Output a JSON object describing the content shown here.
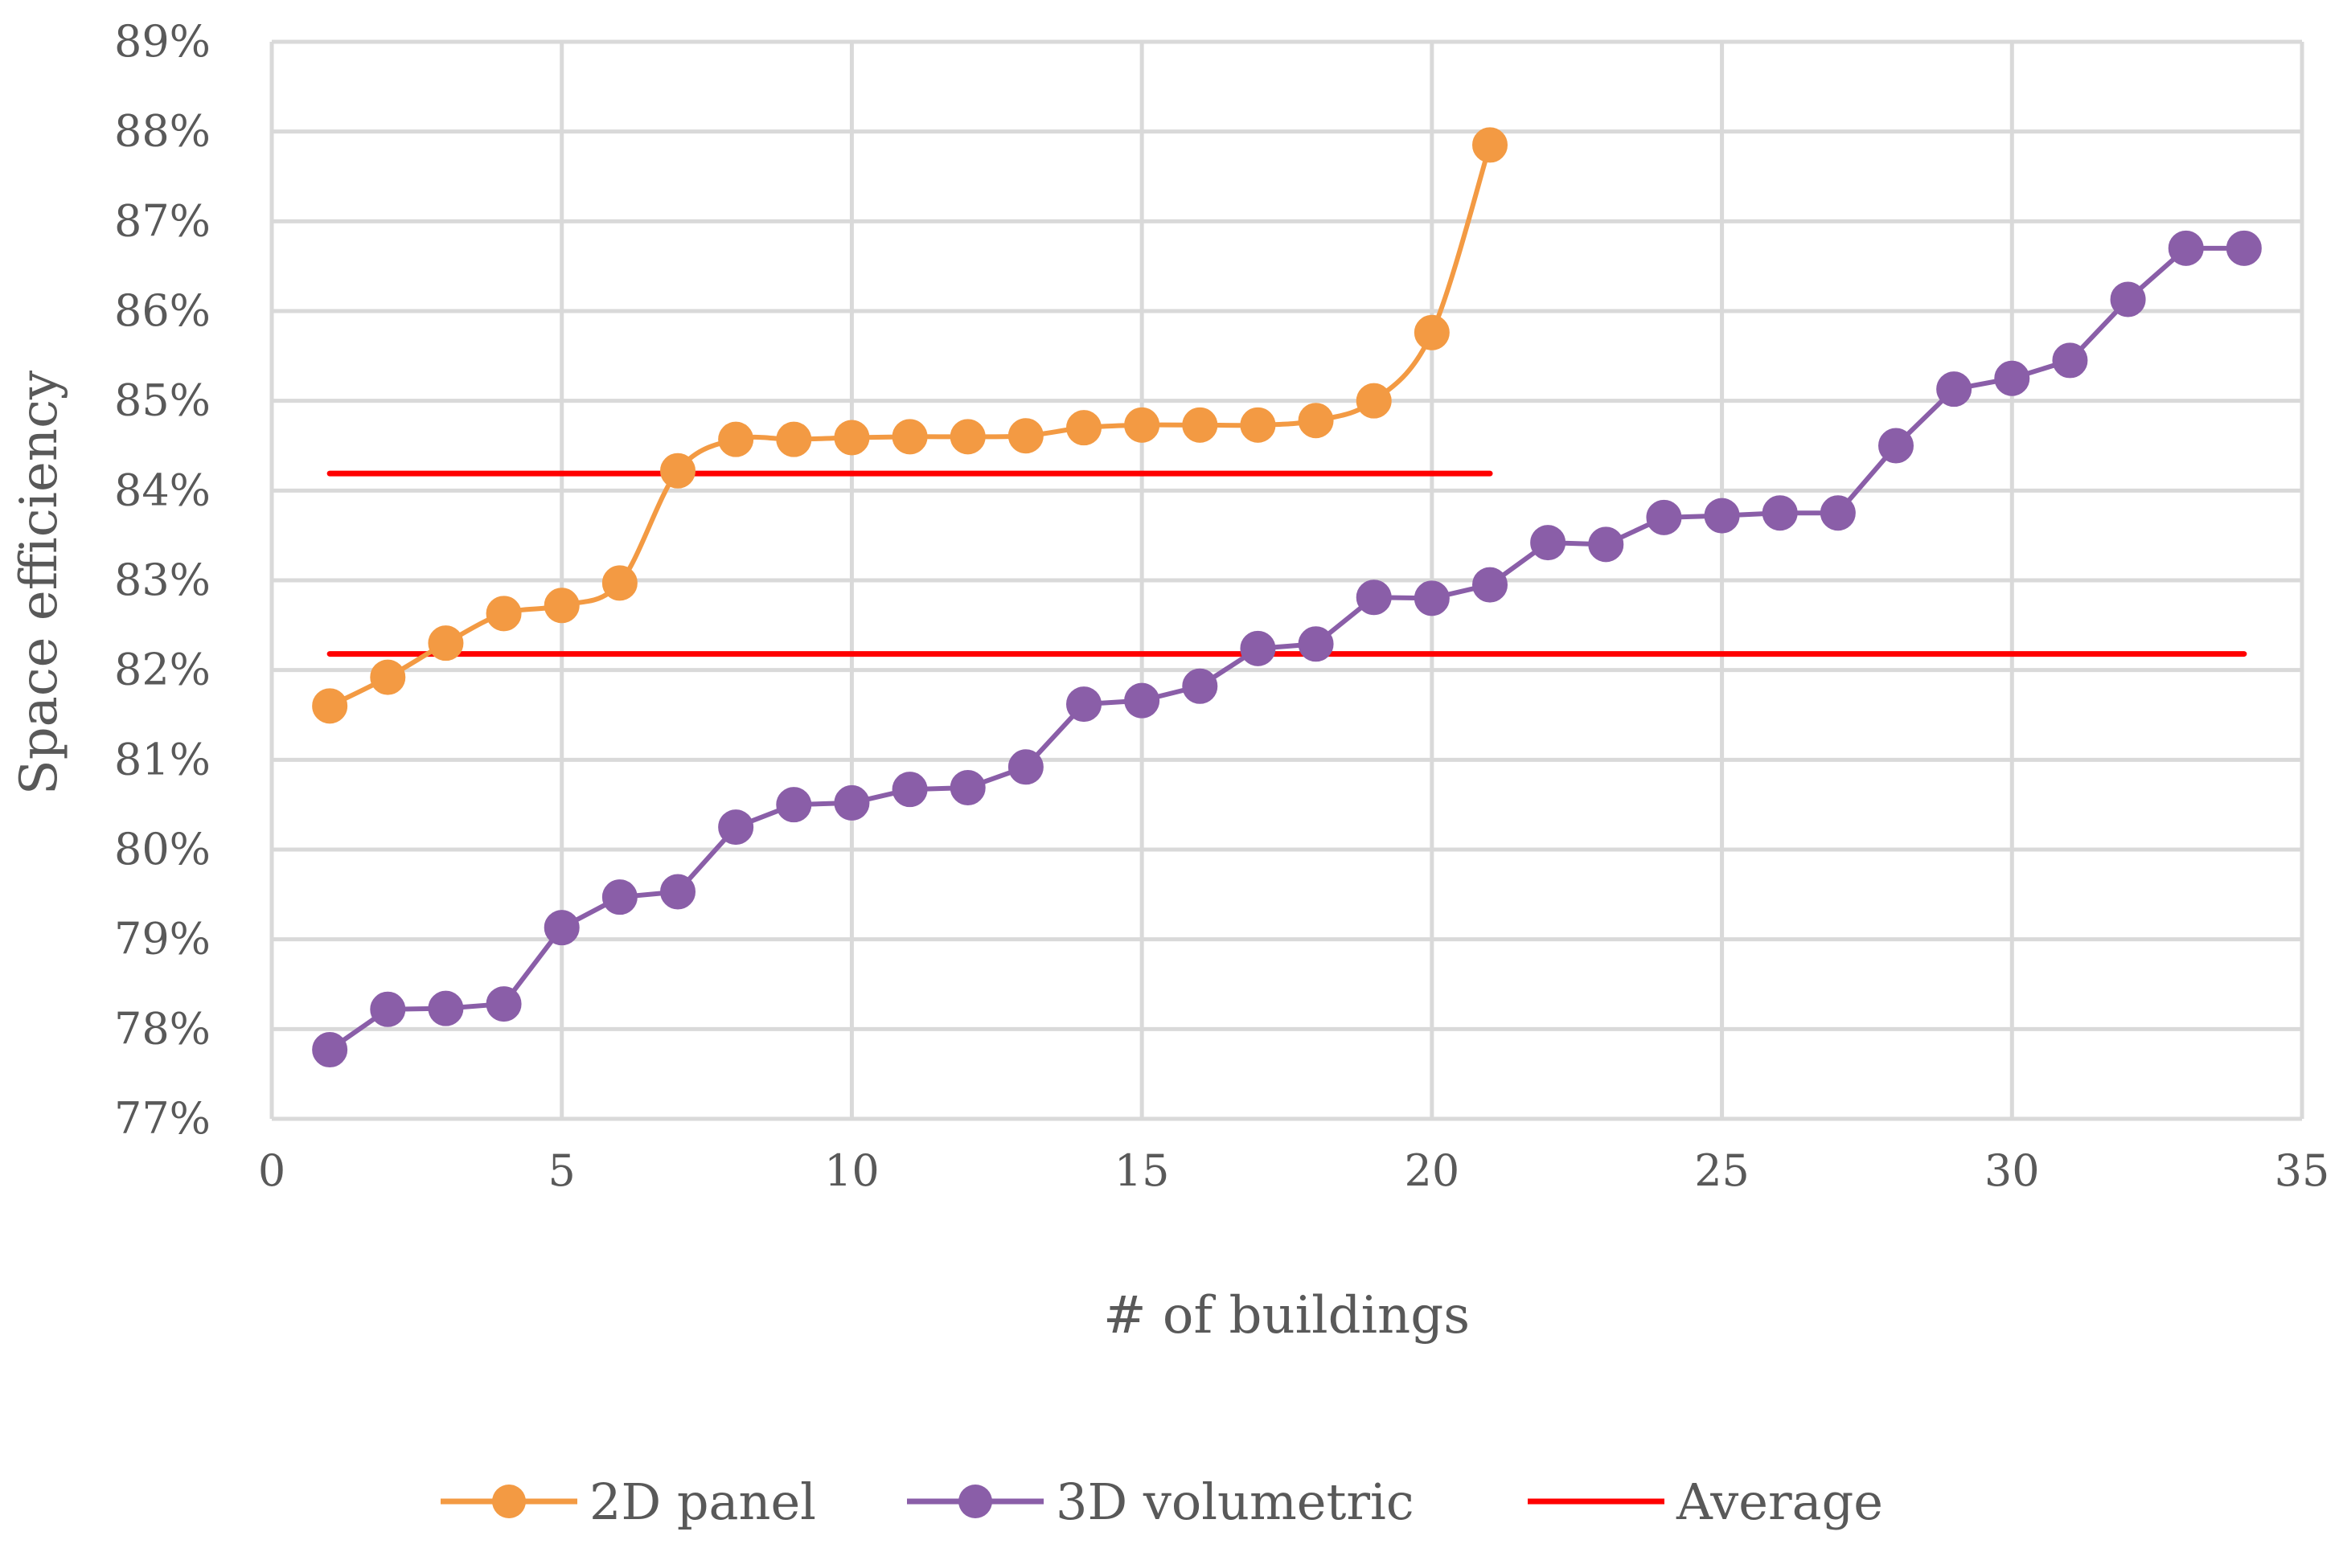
{
  "chart_data": {
    "type": "line",
    "title": "",
    "xlabel": "# of buildings",
    "ylabel": "Space efficiency",
    "xlim": [
      0,
      35
    ],
    "ylim": [
      77,
      89
    ],
    "x_ticks": [
      "0",
      "5",
      "10",
      "15",
      "20",
      "25",
      "30",
      "35"
    ],
    "y_ticks": [
      "77%",
      "78%",
      "79%",
      "80%",
      "81%",
      "82%",
      "83%",
      "84%",
      "85%",
      "86%",
      "87%",
      "88%",
      "89%"
    ],
    "grid": true,
    "legend_position": "bottom",
    "series": [
      {
        "name": "2D panel",
        "color": "#f39a43",
        "marker": "circle",
        "smooth": true,
        "x": [
          1,
          2,
          3,
          4,
          5,
          6,
          7,
          8,
          9,
          10,
          11,
          12,
          13,
          14,
          15,
          16,
          17,
          18,
          19,
          20,
          21
        ],
        "values": [
          81.6,
          81.92,
          82.3,
          82.63,
          82.72,
          82.97,
          84.22,
          84.57,
          84.57,
          84.59,
          84.6,
          84.6,
          84.61,
          84.7,
          84.73,
          84.73,
          84.73,
          84.78,
          85.0,
          85.76,
          87.85
        ]
      },
      {
        "name": "3D volumetric",
        "color": "#8a5ea8",
        "marker": "circle",
        "smooth": false,
        "x": [
          1,
          2,
          3,
          4,
          5,
          6,
          7,
          8,
          9,
          10,
          11,
          12,
          13,
          14,
          15,
          16,
          17,
          18,
          19,
          20,
          21,
          22,
          23,
          24,
          25,
          26,
          27,
          28,
          29,
          30,
          31,
          32,
          33,
          34
        ],
        "values": [
          77.77,
          78.22,
          78.23,
          78.28,
          79.13,
          79.47,
          79.53,
          80.25,
          80.5,
          80.52,
          80.67,
          80.69,
          80.92,
          81.62,
          81.66,
          81.82,
          82.24,
          82.29,
          82.81,
          82.8,
          82.95,
          83.42,
          83.4,
          83.7,
          83.72,
          83.75,
          83.75,
          84.5,
          85.13,
          85.25,
          85.45,
          86.13,
          86.7,
          86.7
        ]
      },
      {
        "name": "Average",
        "color": "#ff0000",
        "marker": "none",
        "legend": true,
        "x": [
          1,
          21
        ],
        "values": [
          84.19,
          84.19
        ]
      },
      {
        "name": "Average",
        "color": "#ff0000",
        "marker": "none",
        "legend": false,
        "x": [
          1,
          34
        ],
        "values": [
          82.18,
          82.18
        ]
      }
    ]
  }
}
